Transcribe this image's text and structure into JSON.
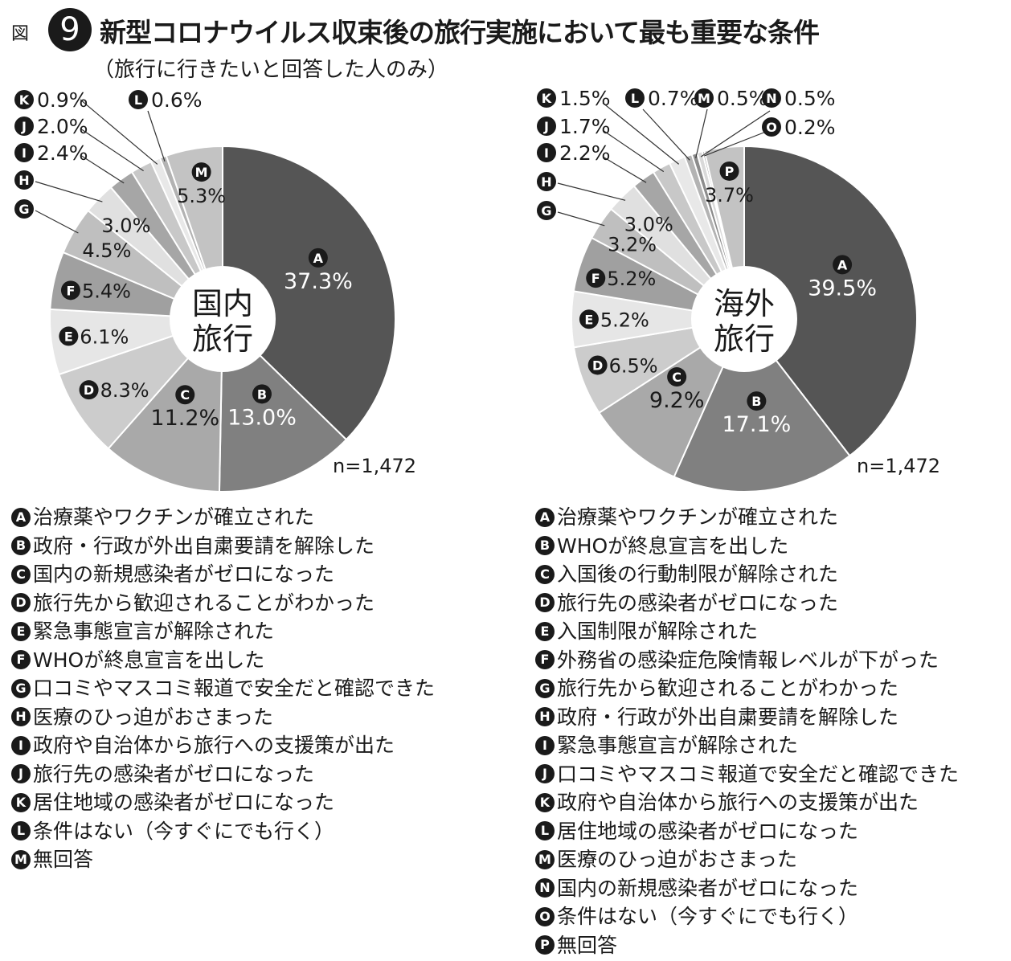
{
  "figure": {
    "prefix": "図",
    "number": "9",
    "title": "新型コロナウイルス収束後の旅行実施において最も重要な条件",
    "subtitle": "（旅行に行きたいと回答した人のみ）"
  },
  "chart_data": [
    {
      "type": "pie",
      "center_label": [
        "国内",
        "旅行"
      ],
      "n_label": "n=1,472",
      "start": "12 o'clock, clockwise",
      "slices": [
        {
          "key": "A",
          "value": 37.3,
          "label": "37.3%",
          "color": "#555555"
        },
        {
          "key": "B",
          "value": 13.0,
          "label": "13.0%",
          "color": "#808080"
        },
        {
          "key": "C",
          "value": 11.2,
          "label": "11.2%",
          "color": "#a9a9a9"
        },
        {
          "key": "D",
          "value": 8.3,
          "label": "8.3%",
          "color": "#cccccc"
        },
        {
          "key": "E",
          "value": 6.1,
          "label": "6.1%",
          "color": "#e6e6e6"
        },
        {
          "key": "F",
          "value": 5.4,
          "label": "5.4%",
          "color": "#a0a0a0"
        },
        {
          "key": "G",
          "value": 4.5,
          "label": "4.5%",
          "color": "#bfbfbf"
        },
        {
          "key": "H",
          "value": 3.0,
          "label": "3.0%",
          "color": "#e0e0e0"
        },
        {
          "key": "I",
          "value": 2.4,
          "label": "2.4%",
          "color": "#a6a6a6"
        },
        {
          "key": "J",
          "value": 2.0,
          "label": "2.0%",
          "color": "#c8c8c8"
        },
        {
          "key": "K",
          "value": 0.9,
          "label": "0.9%",
          "color": "#e8e8e8"
        },
        {
          "key": "L",
          "value": 0.6,
          "label": "0.6%",
          "color": "#b3b3b3"
        },
        {
          "key": "M",
          "value": 5.3,
          "label": "5.3%",
          "color": "#c3c3c3"
        }
      ],
      "legend": [
        {
          "key": "A",
          "text": "治療薬やワクチンが確立された"
        },
        {
          "key": "B",
          "text": "政府・行政が外出自粛要請を解除した"
        },
        {
          "key": "C",
          "text": "国内の新規感染者がゼロになった"
        },
        {
          "key": "D",
          "text": "旅行先から歓迎されることがわかった"
        },
        {
          "key": "E",
          "text": "緊急事態宣言が解除された"
        },
        {
          "key": "F",
          "text": "WHOが終息宣言を出した"
        },
        {
          "key": "G",
          "text": "口コミやマスコミ報道で安全だと確認できた"
        },
        {
          "key": "H",
          "text": "医療のひっ迫がおさまった"
        },
        {
          "key": "I",
          "text": "政府や自治体から旅行への支援策が出た"
        },
        {
          "key": "J",
          "text": "旅行先の感染者がゼロになった"
        },
        {
          "key": "K",
          "text": "居住地域の感染者がゼロになった"
        },
        {
          "key": "L",
          "text": "条件はない（今すぐにでも行く）"
        },
        {
          "key": "M",
          "text": "無回答"
        }
      ]
    },
    {
      "type": "pie",
      "center_label": [
        "海外",
        "旅行"
      ],
      "n_label": "n=1,472",
      "start": "12 o'clock, clockwise",
      "slices": [
        {
          "key": "A",
          "value": 39.5,
          "label": "39.5%",
          "color": "#555555"
        },
        {
          "key": "B",
          "value": 17.1,
          "label": "17.1%",
          "color": "#808080"
        },
        {
          "key": "C",
          "value": 9.2,
          "label": "9.2%",
          "color": "#a9a9a9"
        },
        {
          "key": "D",
          "value": 6.5,
          "label": "6.5%",
          "color": "#cccccc"
        },
        {
          "key": "E",
          "value": 5.2,
          "label": "5.2%",
          "color": "#e6e6e6"
        },
        {
          "key": "F",
          "value": 5.2,
          "label": "5.2%",
          "color": "#a0a0a0"
        },
        {
          "key": "G",
          "value": 3.2,
          "label": "3.2%",
          "color": "#bfbfbf"
        },
        {
          "key": "H",
          "value": 3.0,
          "label": "3.0%",
          "color": "#e0e0e0"
        },
        {
          "key": "I",
          "value": 2.2,
          "label": "2.2%",
          "color": "#a6a6a6"
        },
        {
          "key": "J",
          "value": 1.7,
          "label": "1.7%",
          "color": "#c8c8c8"
        },
        {
          "key": "K",
          "value": 1.5,
          "label": "1.5%",
          "color": "#e8e8e8"
        },
        {
          "key": "L",
          "value": 0.7,
          "label": "0.7%",
          "color": "#b3b3b3"
        },
        {
          "key": "M",
          "value": 0.5,
          "label": "0.5%",
          "color": "#8c8c8c"
        },
        {
          "key": "N",
          "value": 0.5,
          "label": "0.5%",
          "color": "#d9d9d9"
        },
        {
          "key": "O",
          "value": 0.2,
          "label": "0.2%",
          "color": "#999999"
        },
        {
          "key": "P",
          "value": 3.7,
          "label": "3.7%",
          "color": "#c3c3c3"
        }
      ],
      "legend": [
        {
          "key": "A",
          "text": "治療薬やワクチンが確立された"
        },
        {
          "key": "B",
          "text": "WHOが終息宣言を出した"
        },
        {
          "key": "C",
          "text": "入国後の行動制限が解除された"
        },
        {
          "key": "D",
          "text": "旅行先の感染者がゼロになった"
        },
        {
          "key": "E",
          "text": "入国制限が解除された"
        },
        {
          "key": "F",
          "text": "外務省の感染症危険情報レベルが下がった"
        },
        {
          "key": "G",
          "text": "旅行先から歓迎されることがわかった"
        },
        {
          "key": "H",
          "text": "政府・行政が外出自粛要請を解除した"
        },
        {
          "key": "I",
          "text": "緊急事態宣言が解除された"
        },
        {
          "key": "J",
          "text": "口コミやマスコミ報道で安全だと確認できた"
        },
        {
          "key": "K",
          "text": "政府や自治体から旅行への支援策が出た"
        },
        {
          "key": "L",
          "text": "居住地域の感染者がゼロになった"
        },
        {
          "key": "M",
          "text": "医療のひっ迫がおさまった"
        },
        {
          "key": "N",
          "text": "国内の新規感染者がゼロになった"
        },
        {
          "key": "O",
          "text": "条件はない（今すぐにでも行く）"
        },
        {
          "key": "P",
          "text": "無回答"
        }
      ]
    }
  ]
}
